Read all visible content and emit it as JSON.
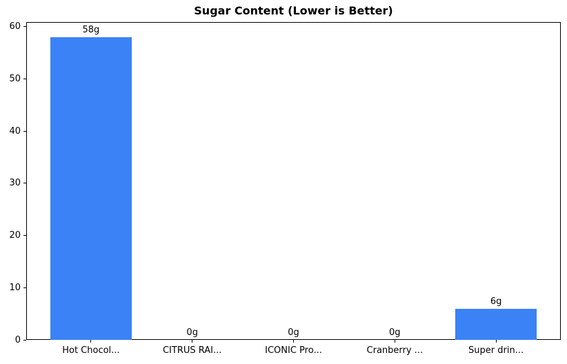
{
  "chart_data": {
    "type": "bar",
    "title": "Sugar Content (Lower is Better)",
    "categories": [
      "Hot Chocol...",
      "CITRUS RAI...",
      "ICONIC Pro...",
      "Cranberry ...",
      "Super drin..."
    ],
    "values": [
      58,
      0,
      0,
      0,
      6
    ],
    "value_labels": [
      "58g",
      "0g",
      "0g",
      "0g",
      "6g"
    ],
    "yticks": [
      0,
      10,
      20,
      30,
      40,
      50,
      60
    ],
    "ytick_labels": [
      "0",
      "10",
      "20",
      "30",
      "40",
      "50",
      "60"
    ],
    "ylim": [
      0,
      60.9
    ],
    "xlim": [
      -0.64,
      4.64
    ],
    "bar_width": 0.8,
    "bar_color": "#3b82f6",
    "axis_color": "#000000",
    "background_color": "#ffffff",
    "grid": false,
    "legend": false,
    "xlabel": "",
    "ylabel": ""
  }
}
